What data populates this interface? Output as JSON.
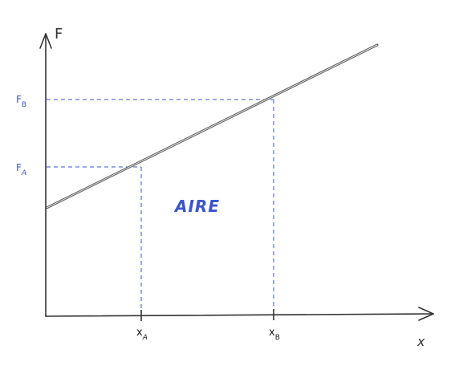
{
  "axes": {
    "y_label": "F",
    "x_label": "x"
  },
  "levels": {
    "FA": {
      "main": "F",
      "sub": "A"
    },
    "FB": {
      "main": "F",
      "sub": "B"
    }
  },
  "positions": {
    "xA": {
      "main": "x",
      "sub": "A"
    },
    "xB": {
      "main": "x",
      "sub": "B"
    }
  },
  "area_label": "AIRE",
  "colors": {
    "guide": "#3b56c9",
    "axis": "#333333",
    "line": "#666666"
  }
}
